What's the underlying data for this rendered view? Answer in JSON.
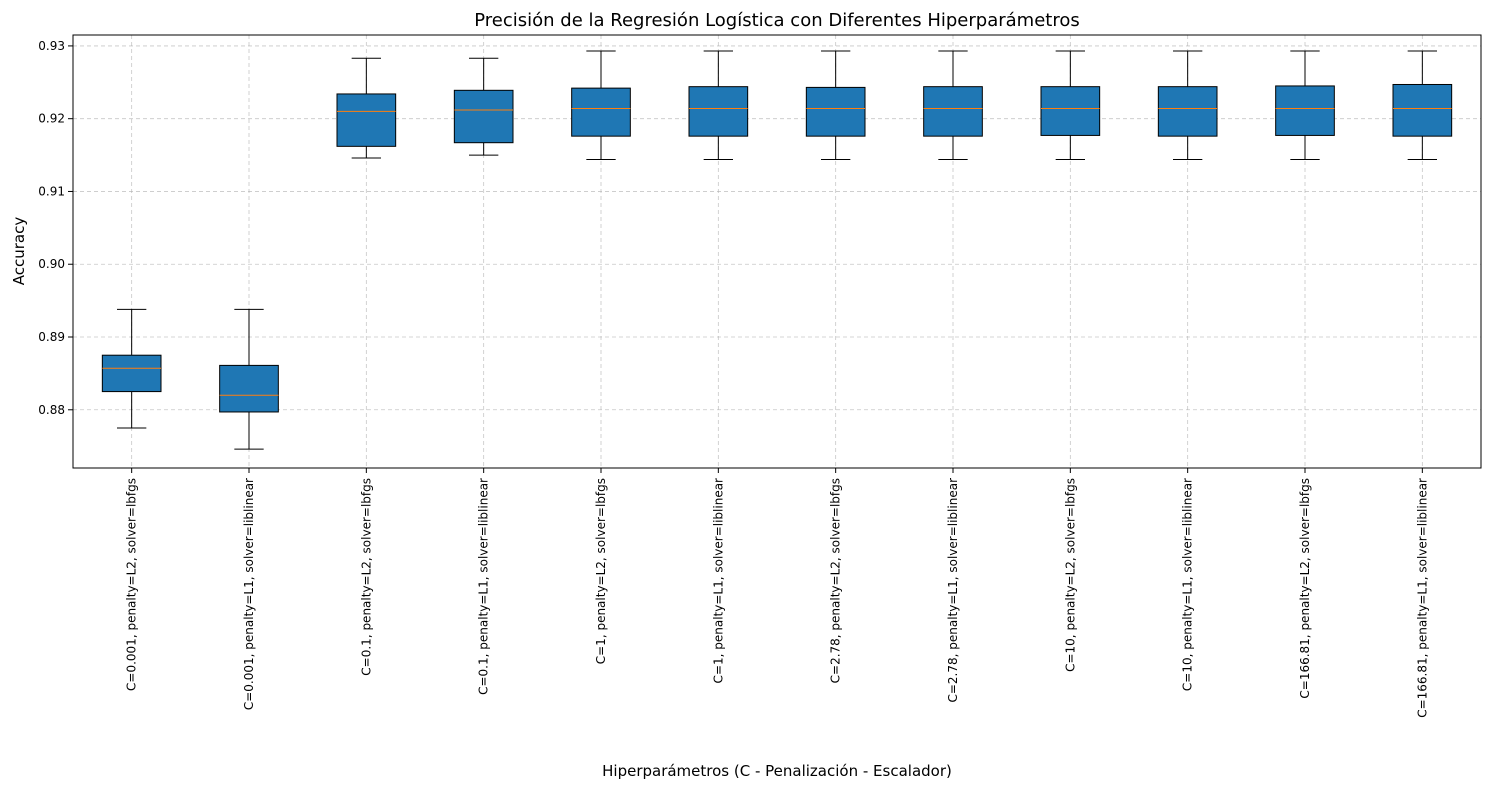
{
  "chart_data": {
    "type": "boxplot",
    "title": "Precisión de la Regresión Logística con Diferentes Hiperparámetros",
    "xlabel": "Hiperparámetros (C - Penalización - Escalador)",
    "ylabel": "Accuracy",
    "ylim": [
      0.872,
      0.9315
    ],
    "yticks": [
      0.88,
      0.89,
      0.9,
      0.91,
      0.92,
      0.93
    ],
    "ytick_labels": [
      "0.88",
      "0.89",
      "0.90",
      "0.91",
      "0.92",
      "0.93"
    ],
    "grid": true,
    "box_color": "#1f77b4",
    "median_color": "#ff7f0e",
    "categories": [
      "C=0.001, penalty=L2, solver=lbfgs",
      "C=0.001, penalty=L1, solver=liblinear",
      "C=0.1, penalty=L2, solver=lbfgs",
      "C=0.1, penalty=L1, solver=liblinear",
      "C=1, penalty=L2, solver=lbfgs",
      "C=1, penalty=L1, solver=liblinear",
      "C=2.78, penalty=L2, solver=lbfgs",
      "C=2.78, penalty=L1, solver=liblinear",
      "C=10, penalty=L2, solver=lbfgs",
      "C=10, penalty=L1, solver=liblinear",
      "C=166.81, penalty=L2, solver=lbfgs",
      "C=166.81, penalty=L1, solver=liblinear"
    ],
    "boxes": [
      {
        "whisker_low": 0.8775,
        "q1": 0.8825,
        "median": 0.8857,
        "q3": 0.8875,
        "whisker_high": 0.8938
      },
      {
        "whisker_low": 0.8746,
        "q1": 0.8797,
        "median": 0.882,
        "q3": 0.8861,
        "whisker_high": 0.8938
      },
      {
        "whisker_low": 0.9146,
        "q1": 0.9162,
        "median": 0.921,
        "q3": 0.9234,
        "whisker_high": 0.9283
      },
      {
        "whisker_low": 0.915,
        "q1": 0.9167,
        "median": 0.9212,
        "q3": 0.9239,
        "whisker_high": 0.9283
      },
      {
        "whisker_low": 0.9144,
        "q1": 0.9176,
        "median": 0.9214,
        "q3": 0.9242,
        "whisker_high": 0.9293
      },
      {
        "whisker_low": 0.9144,
        "q1": 0.9176,
        "median": 0.9214,
        "q3": 0.9244,
        "whisker_high": 0.9293
      },
      {
        "whisker_low": 0.9144,
        "q1": 0.9176,
        "median": 0.9214,
        "q3": 0.9243,
        "whisker_high": 0.9293
      },
      {
        "whisker_low": 0.9144,
        "q1": 0.9176,
        "median": 0.9214,
        "q3": 0.9244,
        "whisker_high": 0.9293
      },
      {
        "whisker_low": 0.9144,
        "q1": 0.9177,
        "median": 0.9214,
        "q3": 0.9244,
        "whisker_high": 0.9293
      },
      {
        "whisker_low": 0.9144,
        "q1": 0.9176,
        "median": 0.9214,
        "q3": 0.9244,
        "whisker_high": 0.9293
      },
      {
        "whisker_low": 0.9144,
        "q1": 0.9177,
        "median": 0.9214,
        "q3": 0.9245,
        "whisker_high": 0.9293
      },
      {
        "whisker_low": 0.9144,
        "q1": 0.9176,
        "median": 0.9214,
        "q3": 0.9247,
        "whisker_high": 0.9293
      }
    ]
  }
}
